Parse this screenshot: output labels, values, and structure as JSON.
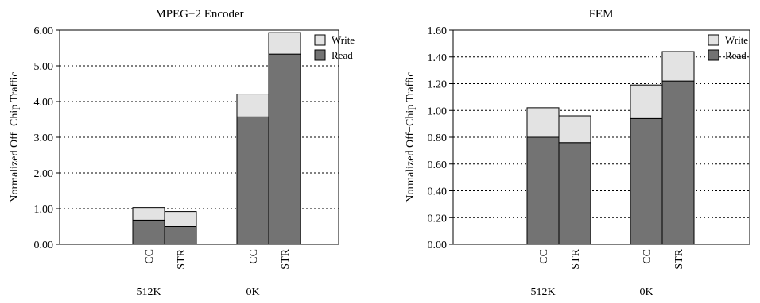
{
  "chart_data": [
    {
      "type": "bar",
      "stacked": true,
      "title": "MPEG−2 Encoder",
      "ylabel": "Normalized Off−Chip Traffic",
      "ylim": [
        0,
        6
      ],
      "yticks": [
        "0.00",
        "1.00",
        "2.00",
        "3.00",
        "4.00",
        "5.00",
        "6.00"
      ],
      "grid": "horizontal-dotted",
      "legend_position": "top-right",
      "groups": [
        {
          "label": "512K",
          "categories": [
            "CC",
            "STR"
          ]
        },
        {
          "label": "0K",
          "categories": [
            "CC",
            "STR"
          ]
        }
      ],
      "categories": [
        "CC",
        "STR",
        "CC",
        "STR"
      ],
      "series": [
        {
          "name": "Read",
          "color": "#737373",
          "values": [
            0.68,
            0.5,
            3.57,
            5.33
          ]
        },
        {
          "name": "Write",
          "color": "#e3e3e3",
          "values": [
            0.35,
            0.42,
            0.64,
            0.6
          ]
        }
      ]
    },
    {
      "type": "bar",
      "stacked": true,
      "title": "FEM",
      "ylabel": "Normalized Off−Chip Traffic",
      "ylim": [
        0,
        1.6
      ],
      "yticks": [
        "0.00",
        "0.20",
        "0.40",
        "0.60",
        "0.80",
        "1.00",
        "1.20",
        "1.40",
        "1.60"
      ],
      "grid": "horizontal-dotted",
      "legend_position": "top-right",
      "groups": [
        {
          "label": "512K",
          "categories": [
            "CC",
            "STR"
          ]
        },
        {
          "label": "0K",
          "categories": [
            "CC",
            "STR"
          ]
        }
      ],
      "categories": [
        "CC",
        "STR",
        "CC",
        "STR"
      ],
      "series": [
        {
          "name": "Read",
          "color": "#737373",
          "values": [
            0.8,
            0.76,
            0.94,
            1.22
          ]
        },
        {
          "name": "Write",
          "color": "#e3e3e3",
          "values": [
            0.22,
            0.2,
            0.25,
            0.22
          ]
        }
      ]
    }
  ]
}
